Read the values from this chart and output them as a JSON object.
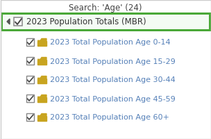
{
  "title": "Search: 'Age' (24)",
  "header_text": "2023 Population Totals (MBR)",
  "items": [
    "2023 Total Population Age 0-14",
    "2023 Total Population Age 15-29",
    "2023 Total Population Age 30-44",
    "2023 Total Population Age 45-59",
    "2023 Total Population Age 60+"
  ],
  "bg_color": "#ffffff",
  "border_color": "#4aa838",
  "header_bg": "#f4fbf4",
  "title_color": "#444444",
  "header_text_color": "#333333",
  "item_text_color": "#5580b8",
  "checkbox_edge_color": "#888888",
  "check_color": "#444444",
  "folder_color": "#c8a420",
  "triangle_color": "#555555",
  "title_fontsize": 8.5,
  "header_fontsize": 8.5,
  "item_fontsize": 8.0,
  "fig_width": 3.04,
  "fig_height": 2.01,
  "dpi": 100
}
